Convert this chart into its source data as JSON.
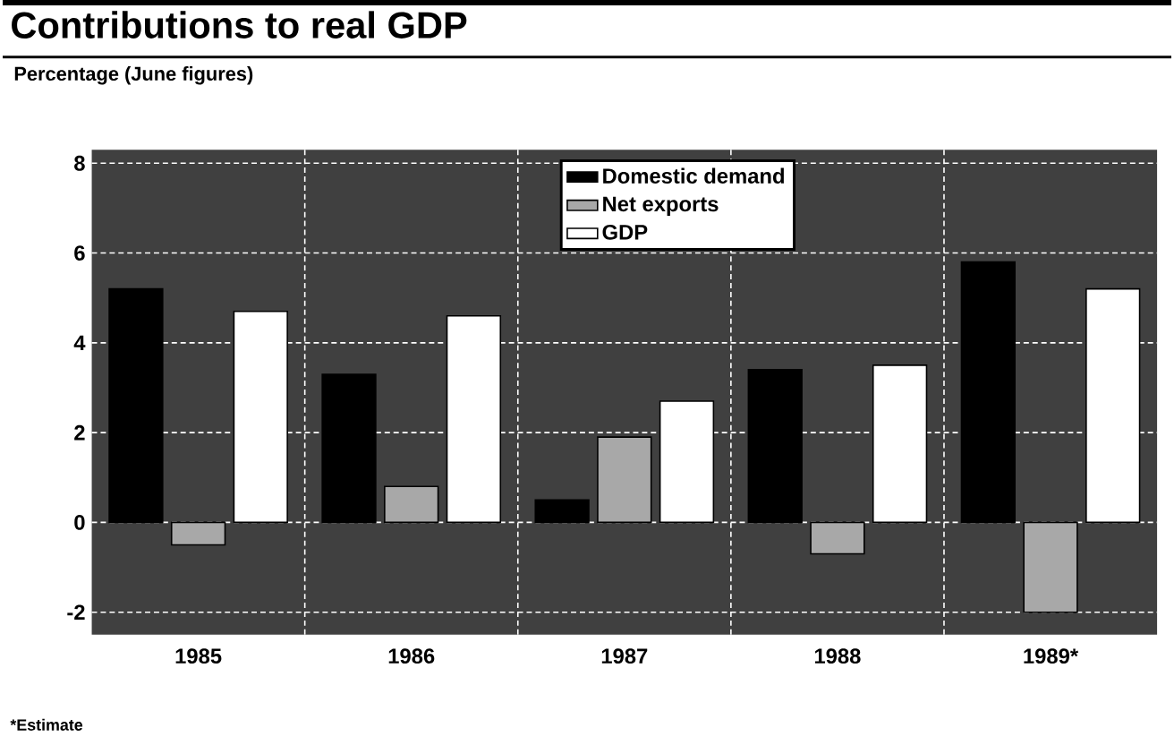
{
  "chart_data": {
    "type": "bar",
    "title": "Contributions to real GDP",
    "ylabel": "Percentage (June figures)",
    "categories": [
      "1985",
      "1986",
      "1987",
      "1988",
      "1989*"
    ],
    "series": [
      {
        "name": "Domestic demand",
        "color": "#000000",
        "values": [
          5.2,
          3.3,
          0.5,
          3.4,
          5.8
        ]
      },
      {
        "name": "Net exports",
        "color": "#a8a8a8",
        "values": [
          -0.5,
          0.8,
          1.9,
          -0.7,
          -2.0
        ]
      },
      {
        "name": "GDP",
        "color": "#ffffff",
        "values": [
          4.7,
          4.6,
          2.7,
          3.5,
          5.2
        ]
      }
    ],
    "ylim": [
      -2.5,
      8.3
    ],
    "yticks": [
      -2,
      0,
      2,
      4,
      6,
      8
    ],
    "grid": true,
    "legend": "top",
    "annotations": [
      "*Estimate"
    ]
  }
}
